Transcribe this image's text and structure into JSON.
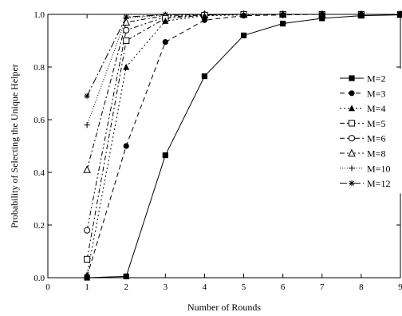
{
  "chart_data": {
    "type": "line",
    "title": "",
    "xlabel": "Number of Rounds",
    "ylabel": "Probability of Selecting the Unique Helper",
    "xlim": [
      0,
      9
    ],
    "ylim": [
      0,
      1.0
    ],
    "xticks": [
      0,
      1,
      2,
      3,
      4,
      5,
      6,
      7,
      8,
      9
    ],
    "yticks": [
      0.0,
      0.2,
      0.4,
      0.6,
      0.8,
      1.0
    ],
    "xtick_labels": [
      "0",
      "1",
      "2",
      "3",
      "4",
      "5",
      "6",
      "7",
      "8",
      "9"
    ],
    "ytick_labels": [
      "0.0",
      "0.2",
      "0.4",
      "0.6",
      "0.8",
      "1.0"
    ],
    "grid": false,
    "legend_position": "right",
    "series": [
      {
        "name": "M=2",
        "marker": "filled-square",
        "dash": "solid",
        "x": [
          1,
          2,
          3,
          4,
          5,
          6,
          7,
          8,
          9
        ],
        "y": [
          0.0,
          0.005,
          0.465,
          0.765,
          0.92,
          0.965,
          0.985,
          0.995,
          0.998
        ]
      },
      {
        "name": "M=3",
        "marker": "filled-circle",
        "dash": "dash",
        "x": [
          1,
          2,
          3,
          4,
          5,
          6,
          7,
          8,
          9
        ],
        "y": [
          0.005,
          0.5,
          0.895,
          0.978,
          0.995,
          0.998,
          1.0,
          1.0,
          1.0
        ]
      },
      {
        "name": "M=4",
        "marker": "filled-triangle",
        "dash": "dot",
        "x": [
          1,
          2,
          3,
          4,
          5,
          6,
          7,
          8,
          9
        ],
        "y": [
          0.01,
          0.8,
          0.975,
          0.995,
          0.998,
          1.0,
          1.0,
          1.0,
          1.0
        ]
      },
      {
        "name": "M=5",
        "marker": "open-square",
        "dash": "dashdot",
        "x": [
          1,
          2,
          3,
          4,
          5,
          6,
          7,
          8,
          9
        ],
        "y": [
          0.07,
          0.9,
          0.985,
          0.997,
          1.0,
          1.0,
          1.0,
          1.0,
          1.0
        ]
      },
      {
        "name": "M=6",
        "marker": "open-circle",
        "dash": "dashdotdot",
        "x": [
          1,
          2,
          3,
          4,
          5,
          6,
          7,
          8,
          9
        ],
        "y": [
          0.18,
          0.94,
          0.99,
          0.998,
          1.0,
          1.0,
          1.0,
          1.0,
          1.0
        ]
      },
      {
        "name": "M=8",
        "marker": "open-triangle",
        "dash": "dashdot",
        "x": [
          1,
          2,
          3,
          4,
          5,
          6,
          7,
          8,
          9
        ],
        "y": [
          0.41,
          0.97,
          0.995,
          1.0,
          1.0,
          1.0,
          1.0,
          1.0,
          1.0
        ]
      },
      {
        "name": "M=10",
        "marker": "plus",
        "dash": "fine-dot",
        "x": [
          1,
          2,
          3,
          4,
          5,
          6,
          7,
          8,
          9
        ],
        "y": [
          0.58,
          0.985,
          0.998,
          1.0,
          1.0,
          1.0,
          1.0,
          1.0,
          1.0
        ]
      },
      {
        "name": "M=12",
        "marker": "star",
        "dash": "longdashdot",
        "x": [
          1,
          2,
          3,
          4,
          5,
          6,
          7,
          8,
          9
        ],
        "y": [
          0.69,
          0.99,
          0.999,
          1.0,
          1.0,
          1.0,
          1.0,
          1.0,
          1.0
        ]
      }
    ]
  },
  "colors": {
    "line": "#000000",
    "background": "#ffffff"
  }
}
